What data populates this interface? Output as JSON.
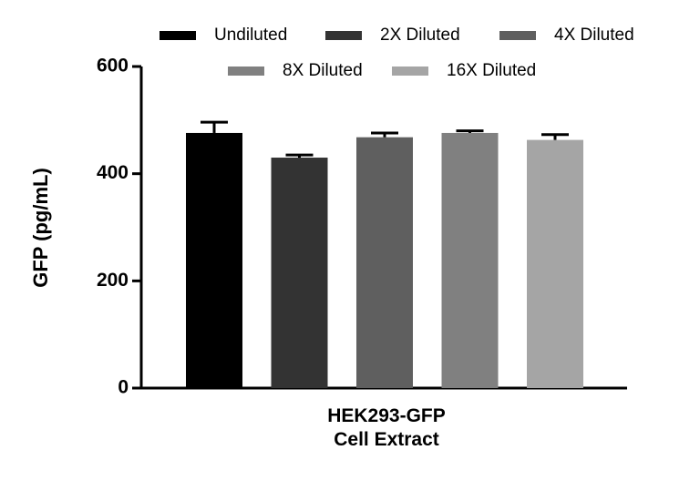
{
  "chart_data": {
    "type": "bar",
    "y_label": "GFP (pg/mL)",
    "categories": [
      "HEK293-GFP\nCell Extract"
    ],
    "series": [
      {
        "name": "Undiluted",
        "color": "#000000",
        "values": [
          476
        ],
        "errors": [
          20
        ]
      },
      {
        "name": "2X Diluted",
        "color": "#333333",
        "values": [
          430
        ],
        "errors": [
          5
        ]
      },
      {
        "name": "4X Diluted",
        "color": "#5f5f5f",
        "values": [
          468
        ],
        "errors": [
          8
        ]
      },
      {
        "name": "8X Diluted",
        "color": "#808080",
        "values": [
          476
        ],
        "errors": [
          4
        ]
      },
      {
        "name": "16X Diluted",
        "color": "#a5a5a5",
        "values": [
          463
        ],
        "errors": [
          10
        ]
      }
    ],
    "ylim": [
      0,
      600
    ],
    "yticks": [
      0,
      200,
      400,
      600
    ],
    "legend": "top"
  }
}
